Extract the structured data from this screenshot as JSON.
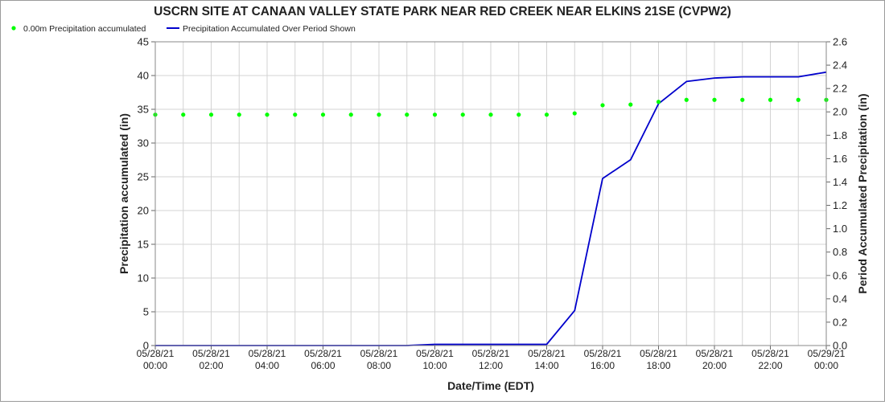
{
  "chart_data": {
    "type": "line",
    "title": "USCRN SITE AT CANAAN VALLEY STATE PARK NEAR RED CREEK NEAR ELKINS 21SE (CVPW2)",
    "xlabel": "Date/Time (EDT)",
    "ylabel_left": "Precipitation accumulated (in)",
    "ylabel_right": "Period Accumulated Precipitation (in)",
    "x_ticks": [
      {
        "hour": 0,
        "date": "05/28/21",
        "time": "00:00"
      },
      {
        "hour": 2,
        "date": "05/28/21",
        "time": "02:00"
      },
      {
        "hour": 4,
        "date": "05/28/21",
        "time": "04:00"
      },
      {
        "hour": 6,
        "date": "05/28/21",
        "time": "06:00"
      },
      {
        "hour": 8,
        "date": "05/28/21",
        "time": "08:00"
      },
      {
        "hour": 10,
        "date": "05/28/21",
        "time": "10:00"
      },
      {
        "hour": 12,
        "date": "05/28/21",
        "time": "12:00"
      },
      {
        "hour": 14,
        "date": "05/28/21",
        "time": "14:00"
      },
      {
        "hour": 16,
        "date": "05/28/21",
        "time": "16:00"
      },
      {
        "hour": 18,
        "date": "05/28/21",
        "time": "18:00"
      },
      {
        "hour": 20,
        "date": "05/28/21",
        "time": "20:00"
      },
      {
        "hour": 22,
        "date": "05/28/21",
        "time": "22:00"
      },
      {
        "hour": 24,
        "date": "05/29/21",
        "time": "00:00"
      }
    ],
    "xlim": [
      0,
      24
    ],
    "ylim_left": [
      0,
      45
    ],
    "y_ticks_left": [
      "0",
      "5",
      "10",
      "15",
      "20",
      "25",
      "30",
      "35",
      "40",
      "45"
    ],
    "ylim_right": [
      0,
      2.6
    ],
    "y_ticks_right": [
      "0.0",
      "0.2",
      "0.4",
      "0.6",
      "0.8",
      "1.0",
      "1.2",
      "1.4",
      "1.6",
      "1.8",
      "2.0",
      "2.2",
      "2.4",
      "2.6"
    ],
    "grid": true,
    "legend_position": "top-left",
    "series": [
      {
        "name": "0.00m Precipitation accumulated",
        "axis": "left",
        "style": "points",
        "color": "#00ff00",
        "x": [
          0,
          1,
          2,
          3,
          4,
          5,
          6,
          7,
          8,
          9,
          10,
          11,
          12,
          13,
          14,
          15,
          16,
          17,
          18,
          19,
          20,
          21,
          22,
          23,
          24
        ],
        "y": [
          34.2,
          34.2,
          34.2,
          34.2,
          34.2,
          34.2,
          34.2,
          34.2,
          34.2,
          34.2,
          34.2,
          34.2,
          34.2,
          34.2,
          34.2,
          34.4,
          35.6,
          35.7,
          36.1,
          36.4,
          36.4,
          36.4,
          36.4,
          36.4,
          36.4
        ]
      },
      {
        "name": "Precipitation Accumulated Over Period Shown",
        "axis": "right",
        "style": "line",
        "color": "#0000cc",
        "x": [
          0,
          1,
          2,
          3,
          4,
          5,
          6,
          7,
          8,
          9,
          10,
          11,
          12,
          13,
          14,
          15,
          16,
          17,
          18,
          19,
          20,
          21,
          22,
          23,
          24
        ],
        "y": [
          0.0,
          0.0,
          0.0,
          0.0,
          0.0,
          0.0,
          0.0,
          0.0,
          0.0,
          0.0,
          0.01,
          0.01,
          0.01,
          0.01,
          0.01,
          0.3,
          1.43,
          1.59,
          2.07,
          2.26,
          2.29,
          2.3,
          2.3,
          2.3,
          2.34
        ]
      }
    ]
  }
}
